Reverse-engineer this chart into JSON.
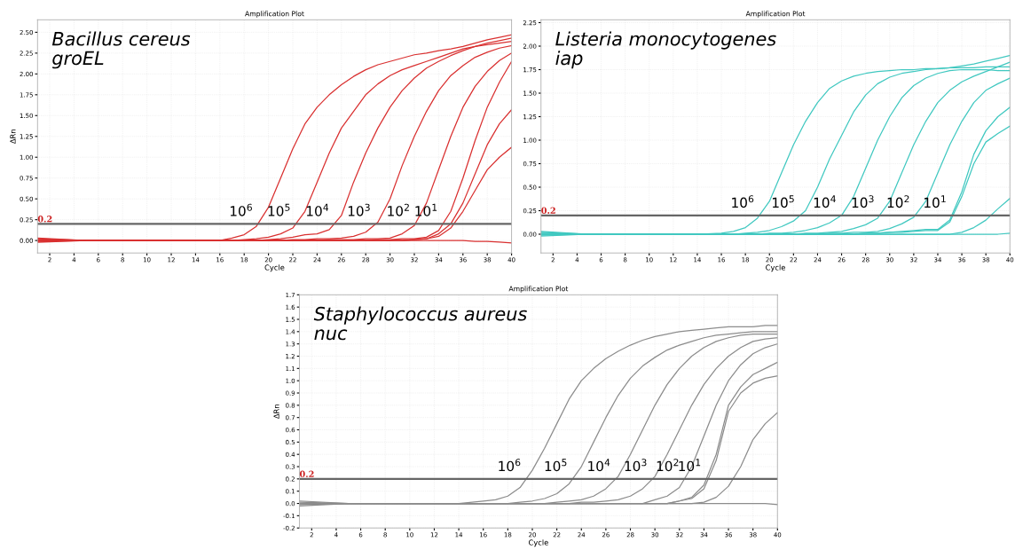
{
  "chart_data": [
    {
      "type": "line",
      "title": "Amplification Plot",
      "xlabel": "Cycle",
      "ylabel": "ΔRn",
      "grid": true,
      "x": [
        1,
        5,
        10,
        14,
        16,
        17,
        18,
        19,
        20,
        21,
        22,
        23,
        24,
        25,
        26,
        27,
        28,
        29,
        30,
        31,
        32,
        33,
        34,
        35,
        36,
        37,
        38,
        39,
        40
      ],
      "xlim": [
        1,
        40
      ],
      "xticks": [
        2,
        4,
        6,
        8,
        10,
        12,
        14,
        16,
        18,
        20,
        22,
        24,
        26,
        28,
        30,
        32,
        34,
        36,
        38,
        40
      ],
      "ylim": [
        -0.15,
        2.65
      ],
      "yticks": [
        {
          "value": 0,
          "label": "0.00"
        },
        {
          "value": 0.25,
          "label": "0.25"
        },
        {
          "value": 0.5,
          "label": "0.50"
        },
        {
          "value": 0.75,
          "label": "0.75"
        },
        {
          "value": 1,
          "label": "1.00"
        },
        {
          "value": 1.25,
          "label": "1.25"
        },
        {
          "value": 1.5,
          "label": "1.50"
        },
        {
          "value": 1.75,
          "label": "1.75"
        },
        {
          "value": 2,
          "label": "2.00"
        },
        {
          "value": 2.25,
          "label": "2.25"
        },
        {
          "value": 2.5,
          "label": "2.50"
        }
      ],
      "series": [
        {
          "color": "#d93030",
          "values": [
            0.01,
            0,
            0,
            0,
            0,
            0.03,
            0.07,
            0.17,
            0.4,
            0.75,
            1.1,
            1.4,
            1.6,
            1.75,
            1.87,
            1.97,
            2.05,
            2.11,
            2.15,
            2.19,
            2.23,
            2.25,
            2.28,
            2.3,
            2.33,
            2.37,
            2.41,
            2.44,
            2.47
          ]
        },
        {
          "color": "#d93030",
          "values": [
            0,
            0,
            0,
            0,
            0,
            0,
            0.01,
            0.02,
            0.04,
            0.08,
            0.15,
            0.35,
            0.7,
            1.05,
            1.35,
            1.55,
            1.75,
            1.88,
            1.98,
            2.05,
            2.1,
            2.15,
            2.2,
            2.25,
            2.3,
            2.33,
            2.37,
            2.4,
            2.43
          ]
        },
        {
          "color": "#d93030",
          "values": [
            -0.01,
            0,
            0,
            0,
            0,
            0,
            0,
            0,
            0.01,
            0.02,
            0.04,
            0.07,
            0.08,
            0.13,
            0.3,
            0.7,
            1.05,
            1.35,
            1.6,
            1.8,
            1.95,
            2.07,
            2.15,
            2.22,
            2.28,
            2.33,
            2.35,
            2.37,
            2.39
          ]
        },
        {
          "color": "#d93030",
          "values": [
            0,
            0,
            0,
            0,
            0,
            0,
            0,
            0,
            0,
            0,
            0.01,
            0.01,
            0.02,
            0.02,
            0.03,
            0.05,
            0.1,
            0.22,
            0.5,
            0.9,
            1.25,
            1.55,
            1.8,
            1.98,
            2.1,
            2.2,
            2.26,
            2.31,
            2.34
          ]
        },
        {
          "color": "#d93030",
          "values": [
            0.02,
            0,
            0,
            0,
            0,
            0,
            0,
            0,
            0,
            0,
            0,
            0,
            0,
            0.01,
            0.01,
            0.01,
            0.02,
            0.02,
            0.03,
            0.08,
            0.18,
            0.45,
            0.85,
            1.25,
            1.6,
            1.85,
            2.03,
            2.16,
            2.25
          ]
        },
        {
          "color": "#d93030",
          "values": [
            0,
            0,
            0,
            0,
            0,
            0,
            0,
            0,
            0,
            0,
            0,
            0,
            0,
            0,
            0,
            0,
            0,
            0.01,
            0.01,
            0.02,
            0.02,
            0.04,
            0.12,
            0.35,
            0.75,
            1.2,
            1.6,
            1.9,
            2.15
          ]
        },
        {
          "color": "#d93030",
          "values": [
            -0.02,
            0,
            0,
            0,
            0,
            0,
            0,
            0,
            0,
            0,
            0,
            0,
            0,
            0,
            0,
            0,
            0,
            0,
            0,
            0,
            0.01,
            0.02,
            0.08,
            0.2,
            0.45,
            0.8,
            1.15,
            1.4,
            1.57
          ]
        },
        {
          "color": "#d93030",
          "values": [
            0,
            0,
            0,
            0,
            0,
            0,
            0,
            0,
            0,
            0,
            0,
            0,
            0,
            0,
            0,
            0,
            0,
            0,
            0,
            0,
            0.01,
            0.02,
            0.05,
            0.15,
            0.35,
            0.6,
            0.85,
            1.0,
            1.12
          ]
        },
        {
          "color": "#d93030",
          "values": [
            0.03,
            0,
            0,
            0,
            0,
            0,
            0,
            0,
            0,
            0,
            0,
            0,
            0,
            0,
            0,
            0,
            0,
            0,
            0,
            0,
            0,
            0,
            0,
            0,
            0,
            -0.01,
            -0.01,
            -0.02,
            -0.03
          ]
        }
      ],
      "ref_lines": [
        {
          "axis": "y",
          "value": 0.2,
          "label": "0.2",
          "color": "#666666"
        }
      ],
      "annotations": [
        "Bacillus cereus\ngroEL",
        "10$^{6}$",
        "10$^{5}$",
        "10$^{4}$",
        "10$^{3}$",
        "10$^{2}$",
        "10$^{1}$"
      ]
    },
    {
      "type": "line",
      "title": "Amplification Plot",
      "xlabel": "Cycle",
      "grid": true,
      "x": [
        1,
        5,
        10,
        14,
        16,
        17,
        18,
        19,
        20,
        21,
        22,
        23,
        24,
        25,
        26,
        27,
        28,
        29,
        30,
        31,
        32,
        33,
        34,
        35,
        36,
        37,
        38,
        39,
        40
      ],
      "xlim": [
        1,
        40
      ],
      "xticks": [
        2,
        4,
        6,
        8,
        10,
        12,
        14,
        16,
        18,
        20,
        22,
        24,
        26,
        28,
        30,
        32,
        34,
        36,
        38,
        40
      ],
      "ylim": [
        -0.2,
        2.28
      ],
      "yticks": [
        {
          "value": 0,
          "label": "0.00"
        },
        {
          "value": 0.25,
          "label": "0.25"
        },
        {
          "value": 0.5,
          "label": "0.50"
        },
        {
          "value": 0.75,
          "label": "0.75"
        },
        {
          "value": 1,
          "label": "1.00"
        },
        {
          "value": 1.25,
          "label": "1.25"
        },
        {
          "value": 1.5,
          "label": "1.50"
        },
        {
          "value": 1.75,
          "label": "1.75"
        },
        {
          "value": 2,
          "label": "2.00"
        },
        {
          "value": 2.25,
          "label": "2.25"
        }
      ],
      "series": [
        {
          "color": "#40c8c0",
          "values": [
            0.01,
            0,
            0,
            0,
            0.01,
            0.03,
            0.07,
            0.17,
            0.35,
            0.65,
            0.95,
            1.2,
            1.4,
            1.55,
            1.63,
            1.68,
            1.71,
            1.73,
            1.74,
            1.75,
            1.75,
            1.76,
            1.76,
            1.77,
            1.77,
            1.77,
            1.78,
            1.78,
            1.78
          ]
        },
        {
          "color": "#40c8c0",
          "values": [
            0,
            0,
            0,
            0,
            0,
            0,
            0.01,
            0.02,
            0.04,
            0.08,
            0.14,
            0.25,
            0.5,
            0.8,
            1.05,
            1.3,
            1.48,
            1.6,
            1.67,
            1.71,
            1.73,
            1.75,
            1.76,
            1.77,
            1.79,
            1.81,
            1.84,
            1.87,
            1.9
          ]
        },
        {
          "color": "#40c8c0",
          "values": [
            -0.01,
            0,
            0,
            0,
            0,
            0,
            0,
            0,
            0.01,
            0.01,
            0.02,
            0.04,
            0.07,
            0.12,
            0.2,
            0.4,
            0.7,
            1.0,
            1.25,
            1.45,
            1.58,
            1.66,
            1.71,
            1.74,
            1.75,
            1.75,
            1.75,
            1.74,
            1.74
          ]
        },
        {
          "color": "#40c8c0",
          "values": [
            0.02,
            0,
            0,
            0,
            0,
            0,
            0,
            0,
            0,
            0,
            0,
            0.01,
            0.01,
            0.02,
            0.03,
            0.06,
            0.1,
            0.17,
            0.35,
            0.65,
            0.95,
            1.2,
            1.4,
            1.53,
            1.62,
            1.68,
            1.73,
            1.78,
            1.83
          ]
        },
        {
          "color": "#40c8c0",
          "values": [
            0,
            0,
            0,
            0,
            0,
            0,
            0,
            0,
            0,
            0,
            0,
            0,
            0,
            0.01,
            0.01,
            0.02,
            0.02,
            0.03,
            0.06,
            0.11,
            0.18,
            0.35,
            0.65,
            0.95,
            1.2,
            1.4,
            1.53,
            1.6,
            1.66
          ]
        },
        {
          "color": "#40c8c0",
          "values": [
            0,
            0,
            0,
            0,
            0,
            0,
            0,
            0,
            0,
            0,
            0,
            0,
            0,
            0,
            0,
            0,
            0.01,
            0.01,
            0.02,
            0.03,
            0.04,
            0.05,
            0.05,
            0.15,
            0.45,
            0.85,
            1.1,
            1.25,
            1.35
          ]
        },
        {
          "color": "#40c8c0",
          "values": [
            -0.02,
            0,
            0,
            0,
            0,
            0,
            0,
            0,
            0,
            0,
            0,
            0,
            0,
            0,
            0,
            0,
            0.01,
            0.01,
            0.02,
            0.02,
            0.03,
            0.04,
            0.04,
            0.13,
            0.4,
            0.75,
            0.98,
            1.07,
            1.15
          ]
        },
        {
          "color": "#40c8c0",
          "values": [
            0,
            0,
            0,
            0,
            0,
            0,
            0,
            0,
            0,
            0,
            0,
            0,
            0,
            0,
            0,
            0,
            0,
            0,
            0,
            0,
            0,
            0,
            0,
            0,
            0.02,
            0.07,
            0.15,
            0.27,
            0.38
          ]
        },
        {
          "color": "#40c8c0",
          "values": [
            0.03,
            0,
            0,
            0,
            0,
            0,
            0,
            0,
            0,
            0,
            0,
            0,
            0,
            0,
            0,
            0,
            0,
            0,
            0,
            0,
            0,
            0,
            0,
            0,
            0,
            0,
            0,
            0,
            0.01
          ]
        }
      ],
      "ref_lines": [
        {
          "axis": "y",
          "value": 0.2,
          "label": "0.2",
          "color": "#666666"
        }
      ],
      "annotations": [
        "Listeria monocytogenes\niap",
        "10$^{6}$",
        "10$^{5}$",
        "10$^{4}$",
        "10$^{3}$",
        "10$^{2}$",
        "10$^{1}$"
      ]
    },
    {
      "type": "line",
      "title": "Amplification Plot",
      "xlabel": "Cycle",
      "ylabel": "ΔRn",
      "grid": true,
      "x": [
        1,
        5,
        10,
        14,
        16,
        17,
        18,
        19,
        20,
        21,
        22,
        23,
        24,
        25,
        26,
        27,
        28,
        29,
        30,
        31,
        32,
        33,
        34,
        35,
        36,
        37,
        38,
        39,
        40
      ],
      "xlim": [
        1,
        40
      ],
      "xticks": [
        2,
        4,
        6,
        8,
        10,
        12,
        14,
        16,
        18,
        20,
        22,
        24,
        26,
        28,
        30,
        32,
        34,
        36,
        38,
        40
      ],
      "ylim": [
        -0.2,
        1.7
      ],
      "yticks": [
        {
          "value": -0.2,
          "label": "-0.2"
        },
        {
          "value": -0.1,
          "label": "-0.1"
        },
        {
          "value": 0,
          "label": "0.0"
        },
        0.1,
        0.2,
        0.3,
        0.4,
        0.5,
        0.6,
        0.7,
        0.8,
        0.9,
        {
          "value": 1,
          "label": "1.0"
        },
        1.1,
        1.2,
        1.3,
        1.4,
        1.5,
        1.6,
        1.7
      ],
      "series": [
        {
          "color": "#8c8c8c",
          "values": [
            0.01,
            0,
            0,
            0,
            0.02,
            0.03,
            0.06,
            0.13,
            0.27,
            0.45,
            0.65,
            0.85,
            1.0,
            1.1,
            1.18,
            1.24,
            1.29,
            1.33,
            1.36,
            1.38,
            1.4,
            1.41,
            1.42,
            1.43,
            1.44,
            1.44,
            1.44,
            1.45,
            1.45
          ]
        },
        {
          "color": "#8c8c8c",
          "values": [
            0,
            0,
            0,
            0,
            0,
            0,
            0,
            0.01,
            0.02,
            0.04,
            0.08,
            0.16,
            0.3,
            0.5,
            0.7,
            0.88,
            1.02,
            1.12,
            1.19,
            1.25,
            1.29,
            1.32,
            1.35,
            1.37,
            1.38,
            1.39,
            1.4,
            1.4,
            1.4
          ]
        },
        {
          "color": "#8c8c8c",
          "values": [
            -0.01,
            0,
            0,
            0,
            0,
            0,
            0,
            0,
            0,
            0,
            0.01,
            0.02,
            0.03,
            0.06,
            0.12,
            0.22,
            0.4,
            0.6,
            0.8,
            0.97,
            1.1,
            1.2,
            1.27,
            1.32,
            1.35,
            1.37,
            1.38,
            1.38,
            1.38
          ]
        },
        {
          "color": "#8c8c8c",
          "values": [
            0,
            0,
            0,
            0,
            0,
            0,
            0,
            0,
            0,
            0,
            0,
            0,
            0.01,
            0.01,
            0.02,
            0.03,
            0.06,
            0.12,
            0.22,
            0.4,
            0.6,
            0.8,
            0.97,
            1.1,
            1.2,
            1.27,
            1.32,
            1.34,
            1.35
          ]
        },
        {
          "color": "#8c8c8c",
          "values": [
            0,
            0,
            0,
            0,
            0,
            0,
            0,
            0,
            0,
            0,
            0,
            0,
            0,
            0,
            0,
            0,
            0,
            0,
            0.03,
            0.06,
            0.13,
            0.3,
            0.55,
            0.8,
            1.0,
            1.13,
            1.22,
            1.27,
            1.3
          ]
        },
        {
          "color": "#8c8c8c",
          "values": [
            0.02,
            0,
            0,
            0,
            0,
            0,
            0,
            0,
            0,
            0,
            0,
            0,
            0,
            0,
            0,
            0,
            0,
            0,
            0,
            0,
            0.02,
            0.05,
            0.15,
            0.4,
            0.8,
            0.95,
            1.05,
            1.1,
            1.15
          ]
        },
        {
          "color": "#8c8c8c",
          "values": [
            -0.02,
            0,
            0,
            0,
            0,
            0,
            0,
            0,
            0,
            0,
            0,
            0,
            0,
            0,
            0,
            0,
            0,
            0,
            0,
            0,
            0.02,
            0.04,
            0.12,
            0.35,
            0.75,
            0.9,
            0.98,
            1.02,
            1.04
          ]
        },
        {
          "color": "#8c8c8c",
          "values": [
            0,
            0,
            0,
            0,
            0,
            0,
            0,
            0,
            0,
            0,
            0,
            0,
            0,
            0,
            0,
            0,
            0,
            0,
            0,
            0,
            0,
            0,
            0.01,
            0.05,
            0.14,
            0.3,
            0.52,
            0.65,
            0.74
          ]
        },
        {
          "color": "#8c8c8c",
          "values": [
            0,
            0,
            0,
            0,
            0,
            0,
            0,
            0,
            0,
            0,
            0,
            0,
            0,
            0,
            0,
            0,
            0,
            0,
            0,
            0,
            0,
            0,
            0,
            0,
            0,
            0,
            0,
            0,
            -0.01
          ]
        }
      ],
      "ref_lines": [
        {
          "axis": "y",
          "value": 0.2,
          "label": "0.2",
          "color": "#666666"
        }
      ],
      "annotations": [
        "Staphylococcus aureus\nnuc",
        "10$^{6}$",
        "10$^{5}$",
        "10$^{4}$",
        "10$^{3}$",
        "10$^{2}$",
        "10$^{1}$"
      ]
    }
  ]
}
